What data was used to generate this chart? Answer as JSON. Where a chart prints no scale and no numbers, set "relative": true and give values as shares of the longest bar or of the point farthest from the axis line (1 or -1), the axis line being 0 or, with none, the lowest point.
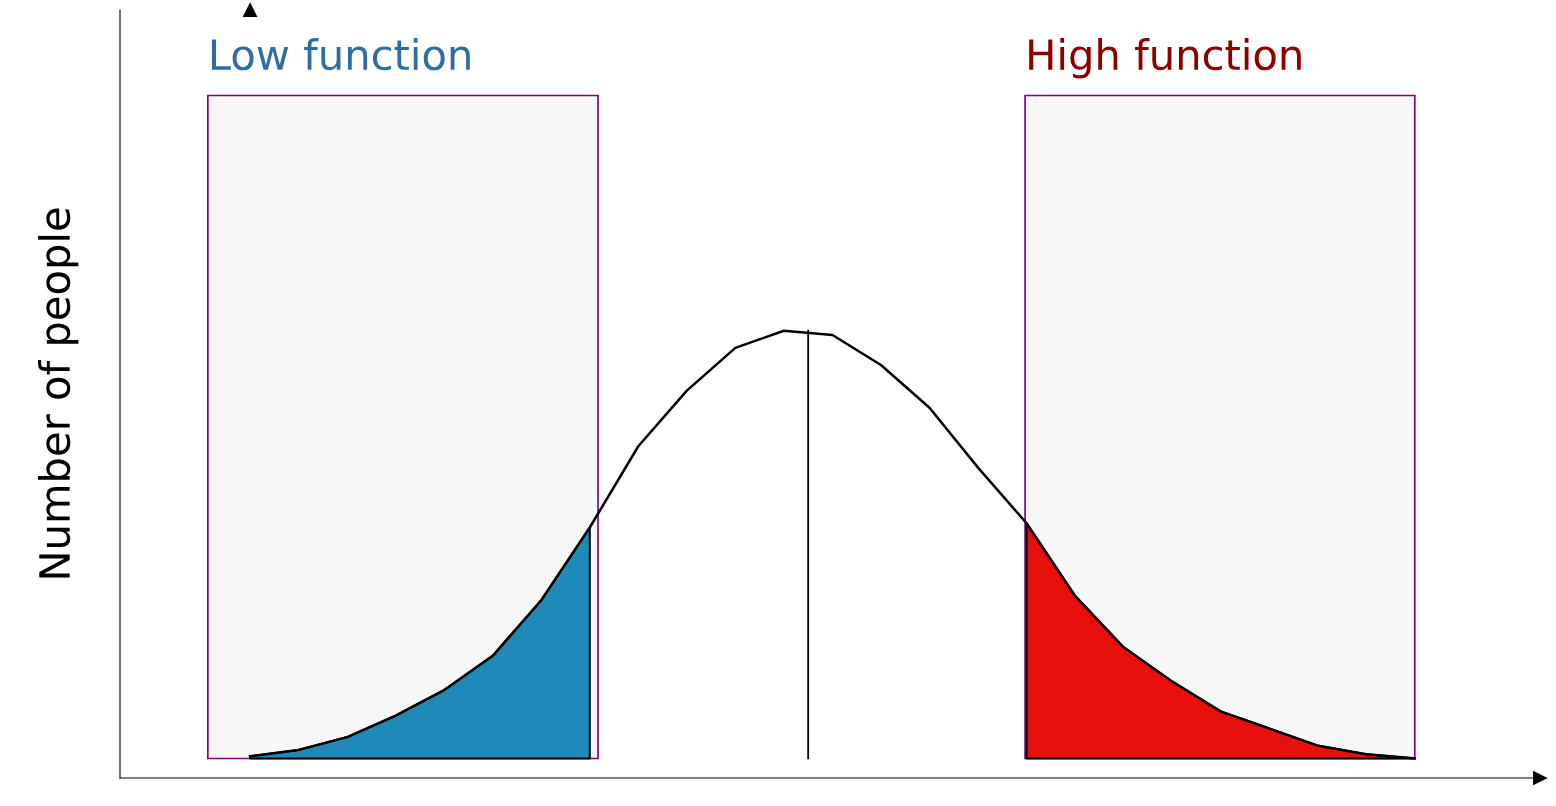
{
  "chart_data": {
    "type": "line",
    "relative": true,
    "ylabel": "Number of people",
    "categories": [
      null,
      null,
      null,
      null,
      null,
      null,
      null,
      null,
      null,
      null,
      null,
      null,
      null,
      null,
      null,
      null,
      null,
      null,
      null,
      null,
      null,
      null,
      null,
      null,
      null
    ],
    "series": [
      {
        "color": "#000000",
        "values": [
          0.005,
          0.02,
          0.05,
          0.1,
          0.16,
          0.24,
          0.37,
          0.54,
          0.73,
          0.86,
          0.96,
          1.0,
          0.99,
          0.92,
          0.82,
          0.68,
          0.55,
          0.38,
          0.26,
          0.18,
          0.11,
          0.07,
          0.03,
          0.01,
          0
        ]
      }
    ],
    "annotations": [
      "Low function",
      "High function"
    ],
    "marker": "none",
    "line_style": "solid"
  }
}
